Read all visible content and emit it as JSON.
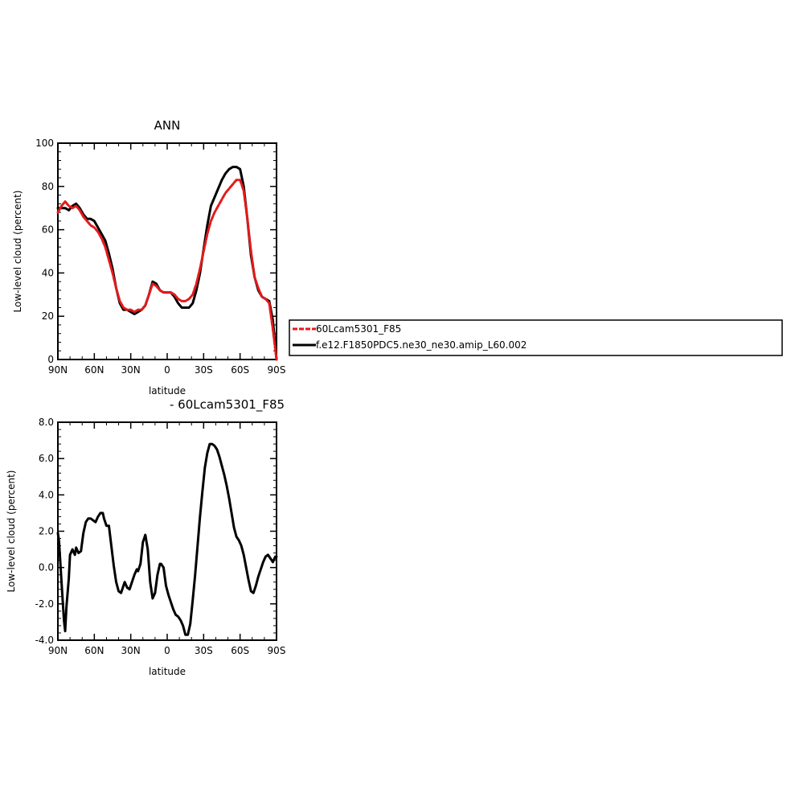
{
  "chart_data": [
    {
      "type": "line",
      "title": "ANN",
      "xlabel": "latitude",
      "ylabel": "Low-level cloud (percent)",
      "xlim": [
        90,
        -90
      ],
      "ylim": [
        0,
        100
      ],
      "x_ticks": [
        90,
        60,
        30,
        0,
        -30,
        -60,
        -90
      ],
      "x_tick_labels": [
        "90N",
        "60N",
        "30N",
        "0",
        "30S",
        "60S",
        "90S"
      ],
      "y_ticks": [
        0,
        20,
        40,
        60,
        80,
        100
      ],
      "y_tick_labels": [
        "0",
        "20",
        "40",
        "60",
        "80",
        "100"
      ],
      "grid": false,
      "series": [
        {
          "name": "60Lcam5301_F85",
          "color": "#e41a1c",
          "style": "dashed",
          "x": [
            90,
            87,
            84,
            81,
            78,
            75,
            72,
            69,
            66,
            63,
            60,
            57,
            54,
            51,
            48,
            45,
            42,
            39,
            36,
            33,
            30,
            27,
            24,
            21,
            18,
            15,
            12,
            9,
            6,
            3,
            0,
            -3,
            -6,
            -9,
            -12,
            -15,
            -18,
            -21,
            -24,
            -27,
            -30,
            -33,
            -36,
            -39,
            -42,
            -45,
            -48,
            -51,
            -54,
            -57,
            -60,
            -63,
            -66,
            -69,
            -72,
            -75,
            -78,
            -81,
            -84,
            -87,
            -90
          ],
          "values": [
            68,
            71,
            73,
            71,
            70,
            71,
            69,
            66,
            64,
            62,
            61,
            59,
            56,
            52,
            46,
            40,
            33,
            27,
            24,
            23,
            23,
            22,
            23,
            23,
            25,
            30,
            35,
            34,
            32,
            31,
            31,
            31,
            30,
            28,
            27,
            27,
            28,
            30,
            35,
            42,
            50,
            58,
            64,
            68,
            71,
            74,
            77,
            79,
            81,
            83,
            83,
            78,
            65,
            50,
            38,
            33,
            29,
            28,
            26,
            14,
            0
          ]
        },
        {
          "name": "f.e12.F1850PDC5.ne30_ne30.amip_L60.002",
          "color": "#000000",
          "style": "solid",
          "x": [
            90,
            87,
            84,
            81,
            78,
            75,
            72,
            69,
            66,
            63,
            60,
            57,
            54,
            51,
            48,
            45,
            42,
            39,
            36,
            33,
            30,
            27,
            24,
            21,
            18,
            15,
            12,
            9,
            6,
            3,
            0,
            -3,
            -6,
            -9,
            -12,
            -15,
            -18,
            -21,
            -24,
            -27,
            -30,
            -33,
            -36,
            -39,
            -42,
            -45,
            -48,
            -51,
            -54,
            -57,
            -60,
            -63,
            -66,
            -69,
            -72,
            -75,
            -78,
            -81,
            -84,
            -87,
            -90
          ],
          "values": [
            70,
            70,
            70,
            69,
            71,
            72,
            70,
            67,
            65,
            65,
            64,
            61,
            58,
            55,
            49,
            42,
            33,
            26,
            23,
            23,
            22,
            21,
            22,
            23,
            25,
            30,
            36,
            35,
            32,
            31,
            31,
            31,
            29,
            26,
            24,
            24,
            24,
            26,
            32,
            40,
            51,
            62,
            71,
            75,
            79,
            83,
            86,
            88,
            89,
            89,
            88,
            80,
            65,
            48,
            38,
            32,
            29,
            28,
            27,
            18,
            0
          ]
        }
      ],
      "legend": {
        "position": "right",
        "entries": [
          "60Lcam5301_F85",
          "f.e12.F1850PDC5.ne30_ne30.amip_L60.002"
        ]
      }
    },
    {
      "type": "line",
      "title": "- 60Lcam5301_F85",
      "xlabel": "latitude",
      "ylabel": "Low-level cloud (percent)",
      "xlim": [
        90,
        -90
      ],
      "ylim": [
        -4,
        8
      ],
      "x_ticks": [
        90,
        60,
        30,
        0,
        -30,
        -60,
        -90
      ],
      "x_tick_labels": [
        "90N",
        "60N",
        "30N",
        "0",
        "30S",
        "60S",
        "90S"
      ],
      "y_ticks": [
        -4,
        -2,
        0,
        2,
        4,
        6,
        8
      ],
      "y_tick_labels": [
        "-4.0",
        "-2.0",
        "0.0",
        "2.0",
        "4.0",
        "6.0",
        "8.0"
      ],
      "grid": false,
      "series": [
        {
          "color": "#000000",
          "style": "solid",
          "x": [
            90,
            89,
            87,
            85,
            84,
            83,
            81,
            80,
            78,
            76,
            75,
            73,
            71,
            69,
            67,
            65,
            63,
            61,
            59,
            57,
            55,
            53,
            52,
            50,
            48,
            46,
            44,
            42,
            40,
            38,
            36,
            35,
            33,
            31,
            29,
            27,
            25,
            24,
            22,
            20,
            18,
            16,
            14,
            12,
            10,
            8,
            6,
            5,
            3,
            1,
            -1,
            -3,
            -5,
            -7,
            -9,
            -11,
            -13,
            -15,
            -17,
            -19,
            -21,
            -23,
            -25,
            -27,
            -29,
            -31,
            -33,
            -35,
            -37,
            -39,
            -41,
            -43,
            -45,
            -47,
            -49,
            -51,
            -53,
            -55,
            -57,
            -59,
            -61,
            -63,
            -65,
            -67,
            -69,
            -71,
            -73,
            -75,
            -77,
            -79,
            -81,
            -83,
            -85,
            -87,
            -89,
            -90
          ],
          "values": [
            1.9,
            1.4,
            -0.8,
            -2.9,
            -3.5,
            -2.2,
            -0.6,
            0.7,
            1.0,
            0.7,
            1.1,
            0.8,
            0.9,
            1.9,
            2.5,
            2.7,
            2.7,
            2.6,
            2.5,
            2.8,
            3.0,
            3.0,
            2.7,
            2.3,
            2.3,
            1.2,
            0.1,
            -0.8,
            -1.3,
            -1.4,
            -1.0,
            -0.8,
            -1.1,
            -1.2,
            -0.8,
            -0.4,
            -0.1,
            -0.2,
            0.2,
            1.4,
            1.8,
            1.0,
            -0.8,
            -1.7,
            -1.4,
            -0.4,
            0.2,
            0.2,
            0.0,
            -1.0,
            -1.5,
            -1.9,
            -2.3,
            -2.6,
            -2.7,
            -2.9,
            -3.2,
            -3.7,
            -3.7,
            -3.1,
            -1.8,
            -0.4,
            1.2,
            2.8,
            4.2,
            5.5,
            6.3,
            6.8,
            6.8,
            6.7,
            6.5,
            6.1,
            5.6,
            5.1,
            4.5,
            3.8,
            3.0,
            2.2,
            1.7,
            1.5,
            1.2,
            0.7,
            0.0,
            -0.7,
            -1.3,
            -1.4,
            -1.0,
            -0.5,
            -0.1,
            0.3,
            0.6,
            0.7,
            0.5,
            0.3,
            0.6,
            0.6
          ]
        }
      ]
    }
  ]
}
